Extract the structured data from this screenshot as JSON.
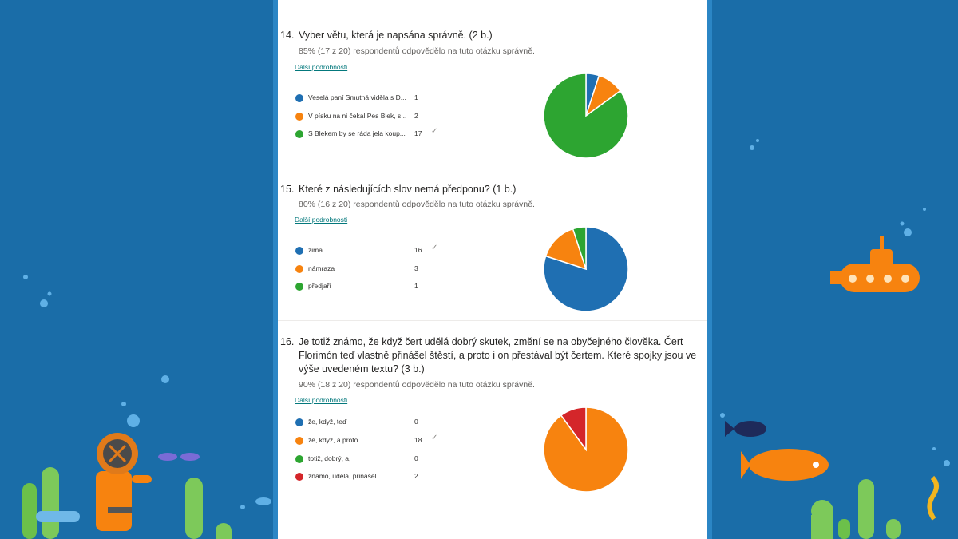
{
  "colors": {
    "blue": "#1f6fb2",
    "orange": "#f7830f",
    "green": "#2da531",
    "red": "#d4262a"
  },
  "questions": [
    {
      "number": "14.",
      "title": "Vyber větu, která je napsána správně. (2 b.)",
      "stat": "85% (17 z 20) respondentů odpovědělo na tuto otázku správně.",
      "more": "Další podrobnosti",
      "options": [
        {
          "label": "Veselá paní Smutná viděla s D...",
          "count": "1",
          "correct": false,
          "color": "blue",
          "value": 1
        },
        {
          "label": "V písku na ni čekal Pes Blek, s...",
          "count": "2",
          "correct": false,
          "color": "orange",
          "value": 2
        },
        {
          "label": "S Blekem by se ráda jela koup...",
          "count": "17",
          "correct": true,
          "color": "green",
          "value": 17
        }
      ]
    },
    {
      "number": "15.",
      "title": "Které z následujících slov nemá předponu? (1 b.)",
      "stat": "80% (16 z 20) respondentů odpovědělo na tuto otázku správně.",
      "more": "Další podrobnosti",
      "options": [
        {
          "label": "zima",
          "count": "16",
          "correct": true,
          "color": "blue",
          "value": 16
        },
        {
          "label": "námraza",
          "count": "3",
          "correct": false,
          "color": "orange",
          "value": 3
        },
        {
          "label": "předjaří",
          "count": "1",
          "correct": false,
          "color": "green",
          "value": 1
        }
      ]
    },
    {
      "number": "16.",
      "title": "Je totiž známo, že když čert udělá dobrý skutek, změní se na obyčejného člověka. Čert Florimón teď vlastně přinášel štěstí, a proto i on přestával být čertem. Které spojky jsou ve výše uvedeném textu? (3 b.)",
      "stat": "90% (18 z 20) respondentů odpovědělo na tuto otázku správně.",
      "more": "Další podrobnosti",
      "options": [
        {
          "label": "že, když, teď",
          "count": "0",
          "correct": false,
          "color": "blue",
          "value": 0
        },
        {
          "label": "že, když, a proto",
          "count": "18",
          "correct": true,
          "color": "orange",
          "value": 18
        },
        {
          "label": "totiž, dobrý, a,",
          "count": "0",
          "correct": false,
          "color": "green",
          "value": 0
        },
        {
          "label": "známo, udělá, přinášel",
          "count": "2",
          "correct": false,
          "color": "red",
          "value": 2
        }
      ]
    }
  ],
  "check_glyph": "✓"
}
